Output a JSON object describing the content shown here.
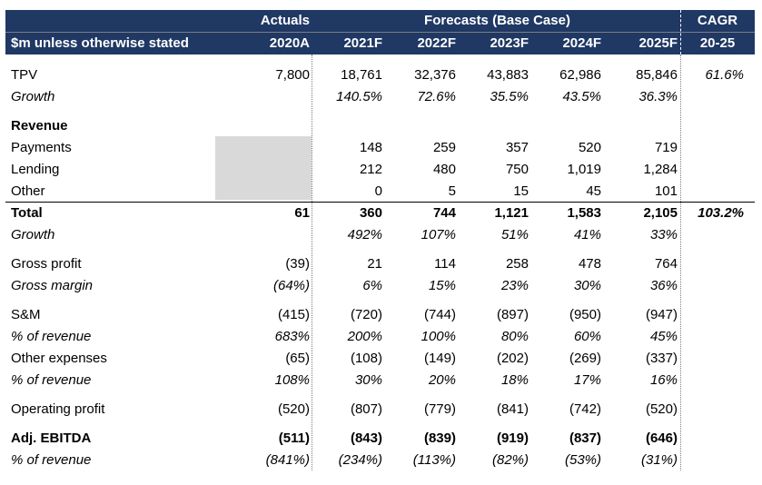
{
  "header": {
    "actuals": "Actuals",
    "forecasts": "Forecasts (Base Case)",
    "cagr": "CAGR",
    "units": "$m unless otherwise stated",
    "years": [
      "2020A",
      "2021F",
      "2022F",
      "2023F",
      "2024F",
      "2025F"
    ],
    "cagr_period": "20-25"
  },
  "rows": {
    "tpv": {
      "label": "TPV",
      "values": [
        "7,800",
        "18,761",
        "32,376",
        "43,883",
        "62,986",
        "85,846"
      ],
      "cagr": "61.6%"
    },
    "tpv_growth": {
      "label": "Growth",
      "values": [
        "",
        "140.5%",
        "72.6%",
        "35.5%",
        "43.5%",
        "36.3%"
      ]
    },
    "revenue_header": {
      "label": "Revenue"
    },
    "payments": {
      "label": "Payments",
      "values": [
        "",
        "148",
        "259",
        "357",
        "520",
        "719"
      ]
    },
    "lending": {
      "label": "Lending",
      "values": [
        "",
        "212",
        "480",
        "750",
        "1,019",
        "1,284"
      ]
    },
    "other": {
      "label": "Other",
      "values": [
        "",
        "0",
        "5",
        "15",
        "45",
        "101"
      ]
    },
    "total": {
      "label": "Total",
      "values": [
        "61",
        "360",
        "744",
        "1,121",
        "1,583",
        "2,105"
      ],
      "cagr": "103.2%"
    },
    "total_growth": {
      "label": "Growth",
      "values": [
        "",
        "492%",
        "107%",
        "51%",
        "41%",
        "33%"
      ]
    },
    "gross_profit": {
      "label": "Gross profit",
      "values": [
        "(39)",
        "21",
        "114",
        "258",
        "478",
        "764"
      ]
    },
    "gross_margin": {
      "label": "Gross margin",
      "values": [
        "(64%)",
        "6%",
        "15%",
        "23%",
        "30%",
        "36%"
      ]
    },
    "sm": {
      "label": "S&M",
      "values": [
        "(415)",
        "(720)",
        "(744)",
        "(897)",
        "(950)",
        "(947)"
      ]
    },
    "sm_pct": {
      "label": "% of revenue",
      "values": [
        "683%",
        "200%",
        "100%",
        "80%",
        "60%",
        "45%"
      ]
    },
    "other_exp": {
      "label": "Other expenses",
      "values": [
        "(65)",
        "(108)",
        "(149)",
        "(202)",
        "(269)",
        "(337)"
      ]
    },
    "other_exp_pct": {
      "label": "% of revenue",
      "values": [
        "108%",
        "30%",
        "20%",
        "18%",
        "17%",
        "16%"
      ]
    },
    "op_profit": {
      "label": "Operating profit",
      "values": [
        "(520)",
        "(807)",
        "(779)",
        "(841)",
        "(742)",
        "(520)"
      ]
    },
    "ebitda": {
      "label": "Adj. EBITDA",
      "values": [
        "(511)",
        "(843)",
        "(839)",
        "(919)",
        "(837)",
        "(646)"
      ]
    },
    "ebitda_pct": {
      "label": "% of revenue",
      "values": [
        "(841%)",
        "(234%)",
        "(113%)",
        "(82%)",
        "(53%)",
        "(31%)"
      ]
    }
  },
  "colors": {
    "header_bg": "#1f3864",
    "header_text": "#ffffff",
    "shade": "#d9d9d9"
  }
}
